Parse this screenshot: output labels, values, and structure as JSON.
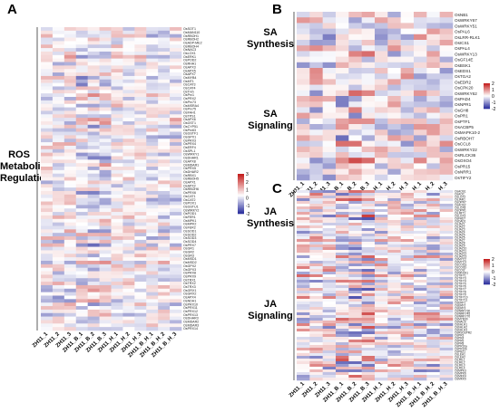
{
  "panels": {
    "a": {
      "letter": "A",
      "group_label": "ROS\nMetabolic\nRegulation"
    },
    "b": {
      "letter": "B",
      "groups": [
        "SA\nSynthesis",
        "SA\nSignaling"
      ]
    },
    "c": {
      "letter": "C",
      "groups": [
        "JA\nSynthesis",
        "JA\nSignaling"
      ]
    }
  },
  "chart_data": [
    {
      "type": "heatmap",
      "panel": "A",
      "columns": [
        "ZH11_1",
        "ZH11_2",
        "ZH11_3",
        "ZH11_B_1",
        "ZH11_B_2",
        "ZH11_B_3",
        "ZH11_H_1",
        "ZH11_H_2",
        "ZH11_H_3",
        "ZH11_B_H_1",
        "ZH11_B_H_2",
        "ZH11_B_H_3"
      ],
      "row_labels": [
        "OsSOT1",
        "OsMAN110",
        "OsRBOH1",
        "OsRBOH2",
        "OsADP-ME2",
        "OsRBOH4",
        "OsNAC3",
        "OsLOX1",
        "OsERK1",
        "OsPOD2",
        "OsRHA1",
        "OsAPX3",
        "OsAPX5",
        "OsAPX7",
        "OsMYB4",
        "OsMT1",
        "OsCAT3",
        "OsCAT4",
        "OsTrxh",
        "OsPrx1",
        "OsPRX2",
        "OsPrx73",
        "OsMSRA4",
        "OsPrx75",
        "OsFAH1",
        "OsTPS1",
        "OsAPX6",
        "OsGST1",
        "OsCYP51",
        "OsPrx63",
        "OsGSTF1",
        "OsGPX1",
        "OsPRX3",
        "OsPRX4",
        "OsERF4",
        "OsSPL1",
        "OsWRKY1",
        "OsDHAR1",
        "OsAPX8",
        "OsMDAR1",
        "OsPRX5",
        "OsDHAR2",
        "OsRBX1",
        "OsRBOH5",
        "OsAPX1",
        "OsAPX2",
        "OsRBOH6",
        "OsPRX6",
        "OsCAT1",
        "OsCAT2",
        "OsPOX1",
        "OsGSTU1",
        "OsWRKY2",
        "OsPOD1",
        "OsFER1",
        "OsMPK1",
        "OsMPK2",
        "OsFER2",
        "OsSOD1",
        "OsSOD2",
        "OsSOD3",
        "OsSOD4",
        "OsPRX7",
        "OsGR1",
        "OsGR2",
        "OsGR3",
        "OsMSD1",
        "OsMSD2",
        "OsGPX2",
        "OsGPX3",
        "OsPRX8",
        "OsPRX9",
        "OsTRX1",
        "OsTRX2",
        "OsTRX3",
        "OsGRX1",
        "OsGRX2",
        "OsAPX4",
        "OsNDH1",
        "OsPRX10",
        "OsPRX11",
        "OsPRX12",
        "OsPRX13",
        "OsDHAR3",
        "OsMDAR2",
        "OsMDAR3",
        "OsPRX14"
      ],
      "legend_ticks": [
        "3",
        "2",
        "1",
        "0",
        "-1",
        "-2"
      ],
      "scale_min": -2.5,
      "scale_max": 3,
      "colors": {
        "low": "#2b2f9e",
        "mid": "#ffffff",
        "high": "#c4201f"
      }
    },
    {
      "type": "heatmap",
      "panel": "B",
      "columns": [
        "ZH11_1",
        "ZH11_2",
        "ZH11_3",
        "ZH11_B_1",
        "ZH11_B_2",
        "ZH11_B_3",
        "ZH11_H_1",
        "ZH11_H_2",
        "ZH11_H_3",
        "ZH11_B_H_1",
        "ZH11_B_H_2",
        "ZH11_B_H_3"
      ],
      "row_labels": [
        "OsNB1",
        "OsWRKY67",
        "OsWRKY51",
        "OsPAL6",
        "OsLRR-RLK1",
        "OsICS1",
        "OsPAL4",
        "OsWRKY13",
        "OsGF14E",
        "OsBSK1",
        "OsEDS1",
        "OsTGA2",
        "OsEDR2",
        "OsCPK20",
        "OsWRKY62",
        "OsPAD4",
        "OsNPR1",
        "OsGH8",
        "OsPR1",
        "OsPTF1",
        "OsACBP5",
        "OsMAPK10-2",
        "OsRBOH7",
        "OsCCL8",
        "OsWRKY22",
        "OsRLCK36",
        "OsOXO4",
        "OsPR15",
        "OsNRR1",
        "OsTIFY2"
      ],
      "legend_ticks": [
        "2",
        "1",
        "0",
        "-1",
        "-2"
      ],
      "scale_min": -2,
      "scale_max": 2,
      "colors": {
        "low": "#2b2f9e",
        "mid": "#ffffff",
        "high": "#c4201f"
      }
    },
    {
      "type": "heatmap",
      "panel": "C",
      "columns": [
        "ZH11_1",
        "ZH11_2",
        "ZH11_3",
        "ZH11_B_1",
        "ZH11_B_2",
        "ZH11_B_3",
        "ZH11_H_1",
        "ZH11_H_2",
        "ZH11_H_3",
        "ZH11_B_H_1",
        "ZH11_B_H_2",
        "ZH11_B_H_3"
      ],
      "row_labels": [
        "OsAOS1",
        "OsAOC",
        "OsLOX2",
        "OsJAR1",
        "OsOPR7",
        "OsAOS2",
        "OsLOX8",
        "OsOPR1",
        "OsJMT1",
        "OsLOX3",
        "OsFAD7",
        "OsDAD1",
        "OsJAZ1",
        "OsJAZ2",
        "OsJAZ3",
        "OsJAZ4",
        "OsJAZ5",
        "OsJAZ6",
        "OsJAZ7",
        "OsJAZ8",
        "OsJAZ9",
        "OsJAZ10",
        "OsJAZ11",
        "OsJAZ12",
        "OsJAZ13",
        "OsMYC2",
        "OsMYC3",
        "OsCOI1a",
        "OsCOI1b",
        "OsCOI2",
        "OsNINJA1",
        "OsTIFY1",
        "OsTIFY3",
        "OsTIFY4",
        "OsTIFY5",
        "OsTIFY6",
        "OsTIFY7",
        "OsTIFY8",
        "OsTIFY9",
        "OsTIFY10",
        "OsTIFY11",
        "OsERF1",
        "OsERF2",
        "OsERF3",
        "OsWRKY30",
        "OsWRKY45",
        "OsWRKY70",
        "OsMYB30",
        "OsNAC6",
        "OsbHLH1",
        "OsbHLH2",
        "OsbHLH3",
        "OsRSOsPR2",
        "OsPR3",
        "OsPR4",
        "OsPR5",
        "OsPR8",
        "OsPR10a",
        "OsPR10b",
        "OsPBZ1",
        "OsLEA1",
        "OsLEA2",
        "OsJRL1",
        "OsJRL2",
        "OsJRL3",
        "OsJRL4",
        "OsMPK3",
        "OsMPK6",
        "OsMKK4",
        "OsMKK5"
      ],
      "legend_ticks": [
        "2",
        "1",
        "0",
        "-1",
        "-2"
      ],
      "scale_min": -2,
      "scale_max": 2,
      "colors": {
        "low": "#2b2f9e",
        "mid": "#ffffff",
        "high": "#c4201f"
      }
    }
  ]
}
